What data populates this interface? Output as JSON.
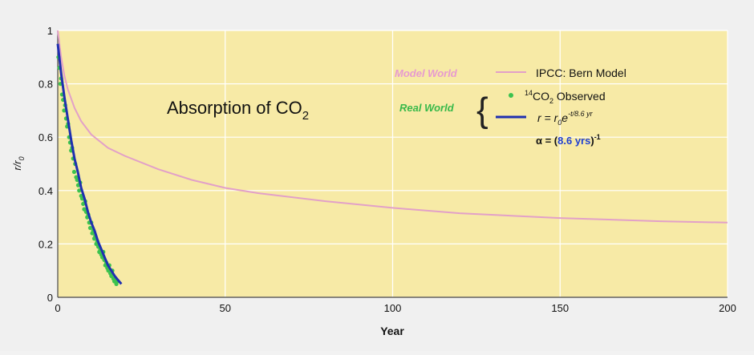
{
  "chart_data": {
    "type": "line",
    "title": "Absorption of CO",
    "title_subscript": "2",
    "xlabel": "Year",
    "ylabel": "r/r",
    "ylabel_subscript": "0",
    "xlim": [
      0,
      200
    ],
    "ylim": [
      0,
      1
    ],
    "xticks": [
      0,
      50,
      100,
      150,
      200
    ],
    "yticks": [
      0,
      0.2,
      0.4,
      0.6,
      0.8,
      1
    ],
    "ytick_labels": [
      "0",
      "0.2",
      "0.4",
      "0.6",
      "0.8",
      "1"
    ],
    "grid": true,
    "background_color": "#f7eaa6",
    "colors": {
      "bern": "#e2a0c8",
      "fit": "#1f2fb0",
      "observed": "#3cc24e",
      "model_label": "#e79ad0",
      "real_label": "#38b94a",
      "alpha_value": "#1f3fd0"
    },
    "legend": {
      "model_world_label": "Model World",
      "real_world_label": "Real World",
      "bern_label": "IPCC: Bern Model",
      "observed_sup": "14",
      "observed_label_a": "CO",
      "observed_label_sub": "2",
      "observed_label_b": " Observed",
      "fit_r": "r = r",
      "fit_sub": "0",
      "fit_e": "e",
      "fit_exp": "-t/8.6 yr",
      "alpha_prefix": "α = (",
      "alpha_value": "8.6 yrs",
      "alpha_suffix": ")",
      "alpha_exp": "-1",
      "brace": "{"
    },
    "series": [
      {
        "name": "IPCC: Bern Model",
        "x": [
          0,
          1,
          2,
          3,
          5,
          7,
          10,
          15,
          20,
          30,
          40,
          50,
          60,
          80,
          100,
          120,
          150,
          180,
          200
        ],
        "y": [
          1.0,
          0.9,
          0.83,
          0.78,
          0.71,
          0.66,
          0.61,
          0.56,
          0.53,
          0.48,
          0.44,
          0.41,
          0.39,
          0.36,
          0.335,
          0.315,
          0.297,
          0.285,
          0.28
        ]
      },
      {
        "name": "r = r0 e^(-t/8.6 yr)",
        "x": [
          0,
          1,
          2,
          3,
          4,
          5,
          6,
          7,
          8,
          9,
          10,
          11,
          12,
          13,
          14,
          15,
          16,
          17,
          18,
          19
        ],
        "y": [
          0.95,
          0.84,
          0.75,
          0.67,
          0.59,
          0.52,
          0.47,
          0.41,
          0.37,
          0.32,
          0.28,
          0.25,
          0.21,
          0.18,
          0.15,
          0.12,
          0.1,
          0.08,
          0.065,
          0.05
        ]
      },
      {
        "name": "14CO2 Observed",
        "x": [
          0.2,
          0.5,
          0.8,
          1.0,
          1.3,
          1.6,
          1.9,
          2.2,
          2.5,
          2.8,
          3.1,
          3.4,
          3.7,
          4.0,
          4.3,
          4.6,
          4.9,
          5.2,
          5.5,
          5.8,
          6.1,
          6.4,
          6.7,
          7.0,
          7.3,
          7.6,
          7.9,
          8.2,
          8.5,
          8.8,
          9.1,
          9.4,
          9.7,
          10.0,
          10.3,
          10.6,
          10.9,
          11.2,
          11.5,
          11.8,
          12.1,
          12.4,
          12.7,
          13.0,
          13.3,
          13.6,
          13.9,
          14.2,
          14.5,
          14.8,
          15.1,
          15.4,
          15.7,
          16.0,
          16.3,
          16.6,
          16.9,
          17.2,
          17.5,
          17.8
        ],
        "y": [
          0.9,
          0.86,
          0.8,
          0.82,
          0.76,
          0.74,
          0.7,
          0.72,
          0.67,
          0.64,
          0.65,
          0.6,
          0.58,
          0.55,
          0.56,
          0.52,
          0.47,
          0.5,
          0.45,
          0.44,
          0.42,
          0.4,
          0.43,
          0.38,
          0.37,
          0.35,
          0.33,
          0.36,
          0.32,
          0.3,
          0.31,
          0.28,
          0.26,
          0.28,
          0.24,
          0.25,
          0.22,
          0.23,
          0.2,
          0.21,
          0.19,
          0.17,
          0.18,
          0.16,
          0.15,
          0.17,
          0.14,
          0.12,
          0.13,
          0.11,
          0.1,
          0.12,
          0.09,
          0.08,
          0.1,
          0.07,
          0.06,
          0.07,
          0.05,
          0.06
        ]
      }
    ]
  }
}
